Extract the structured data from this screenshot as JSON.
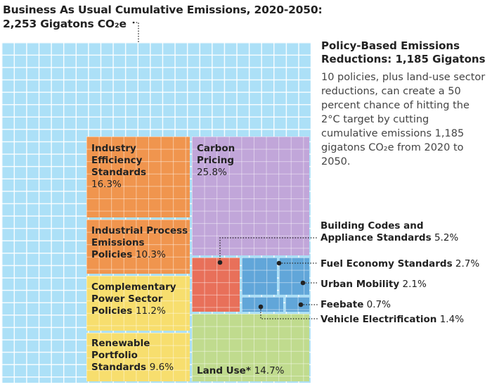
{
  "chart_data": {
    "type": "treemap",
    "title_line1": "Business As Usual Cumulative Emissions, 2020-2050:",
    "title_line2": "2,253 Gigatons CO₂e",
    "total_gigatons": 2253,
    "reductions_heading_line1": "Policy-Based Emissions",
    "reductions_heading_line2": "Reductions: 1,185 Gigatons",
    "reductions_gigatons": 1185,
    "description": "10 policies, plus land-use sector reductions, can create a 50 percent chance of hitting the 2°C target by cutting cumulative emissions 1,185 gigatons CO₂e from 2020 to 2050.",
    "segments": [
      {
        "name": "Industry Efficiency Standards",
        "label": "Industry\nEfficiency\nStandards",
        "value_label": "16.3%",
        "value": 16.3,
        "color": "#f0954e"
      },
      {
        "name": "Industrial Process Emissions Policies",
        "label": "Industrial Process\nEmissions\nPolicies",
        "value_label": "10.3%",
        "value": 10.3,
        "color": "#f0954e"
      },
      {
        "name": "Complementary Power Sector Policies",
        "label": "Complementary\nPower Sector\nPolicies",
        "value_label": "11.2%",
        "value": 11.2,
        "color": "#f7de6e"
      },
      {
        "name": "Renewable Portfolio Standards",
        "label": "Renewable\nPortfolio\nStandards",
        "value_label": "9.6%",
        "value": 9.6,
        "color": "#f7de6e"
      },
      {
        "name": "Carbon Pricing",
        "label": "Carbon\nPricing",
        "value_label": "25.8%",
        "value": 25.8,
        "color": "#c1a6d9"
      },
      {
        "name": "Land Use*",
        "label": "Land Use*",
        "value_label": "14.7%",
        "value": 14.7,
        "color": "#c0db8e"
      },
      {
        "name": "Building Codes and Appliance Standards",
        "label": "Building Codes and\nAppliance Standards",
        "value_label": "5.2%",
        "value": 5.2,
        "color": "#e8705a"
      },
      {
        "name": "Fuel Economy Standards",
        "label": "Fuel Economy Standards",
        "value_label": "2.7%",
        "value": 2.7,
        "color": "#61a6d9"
      },
      {
        "name": "Urban Mobility",
        "label": "Urban Mobility",
        "value_label": "2.1%",
        "value": 2.1,
        "color": "#61a6d9"
      },
      {
        "name": "Feebate",
        "label": "Feebate",
        "value_label": "0.7%",
        "value": 0.7,
        "color": "#61a6d9"
      },
      {
        "name": "Vehicle Electrification",
        "label": "Vehicle Electrification",
        "value_label": "1.4%",
        "value": 1.4,
        "color": "#61a6d9"
      }
    ],
    "colors": {
      "background_grid": "#ace0f7",
      "industry": "#f0954e",
      "power": "#f7de6e",
      "carbon_pricing": "#c1a6d9",
      "land_use": "#c0db8e",
      "buildings": "#e8705a",
      "transport": "#61a6d9"
    }
  }
}
